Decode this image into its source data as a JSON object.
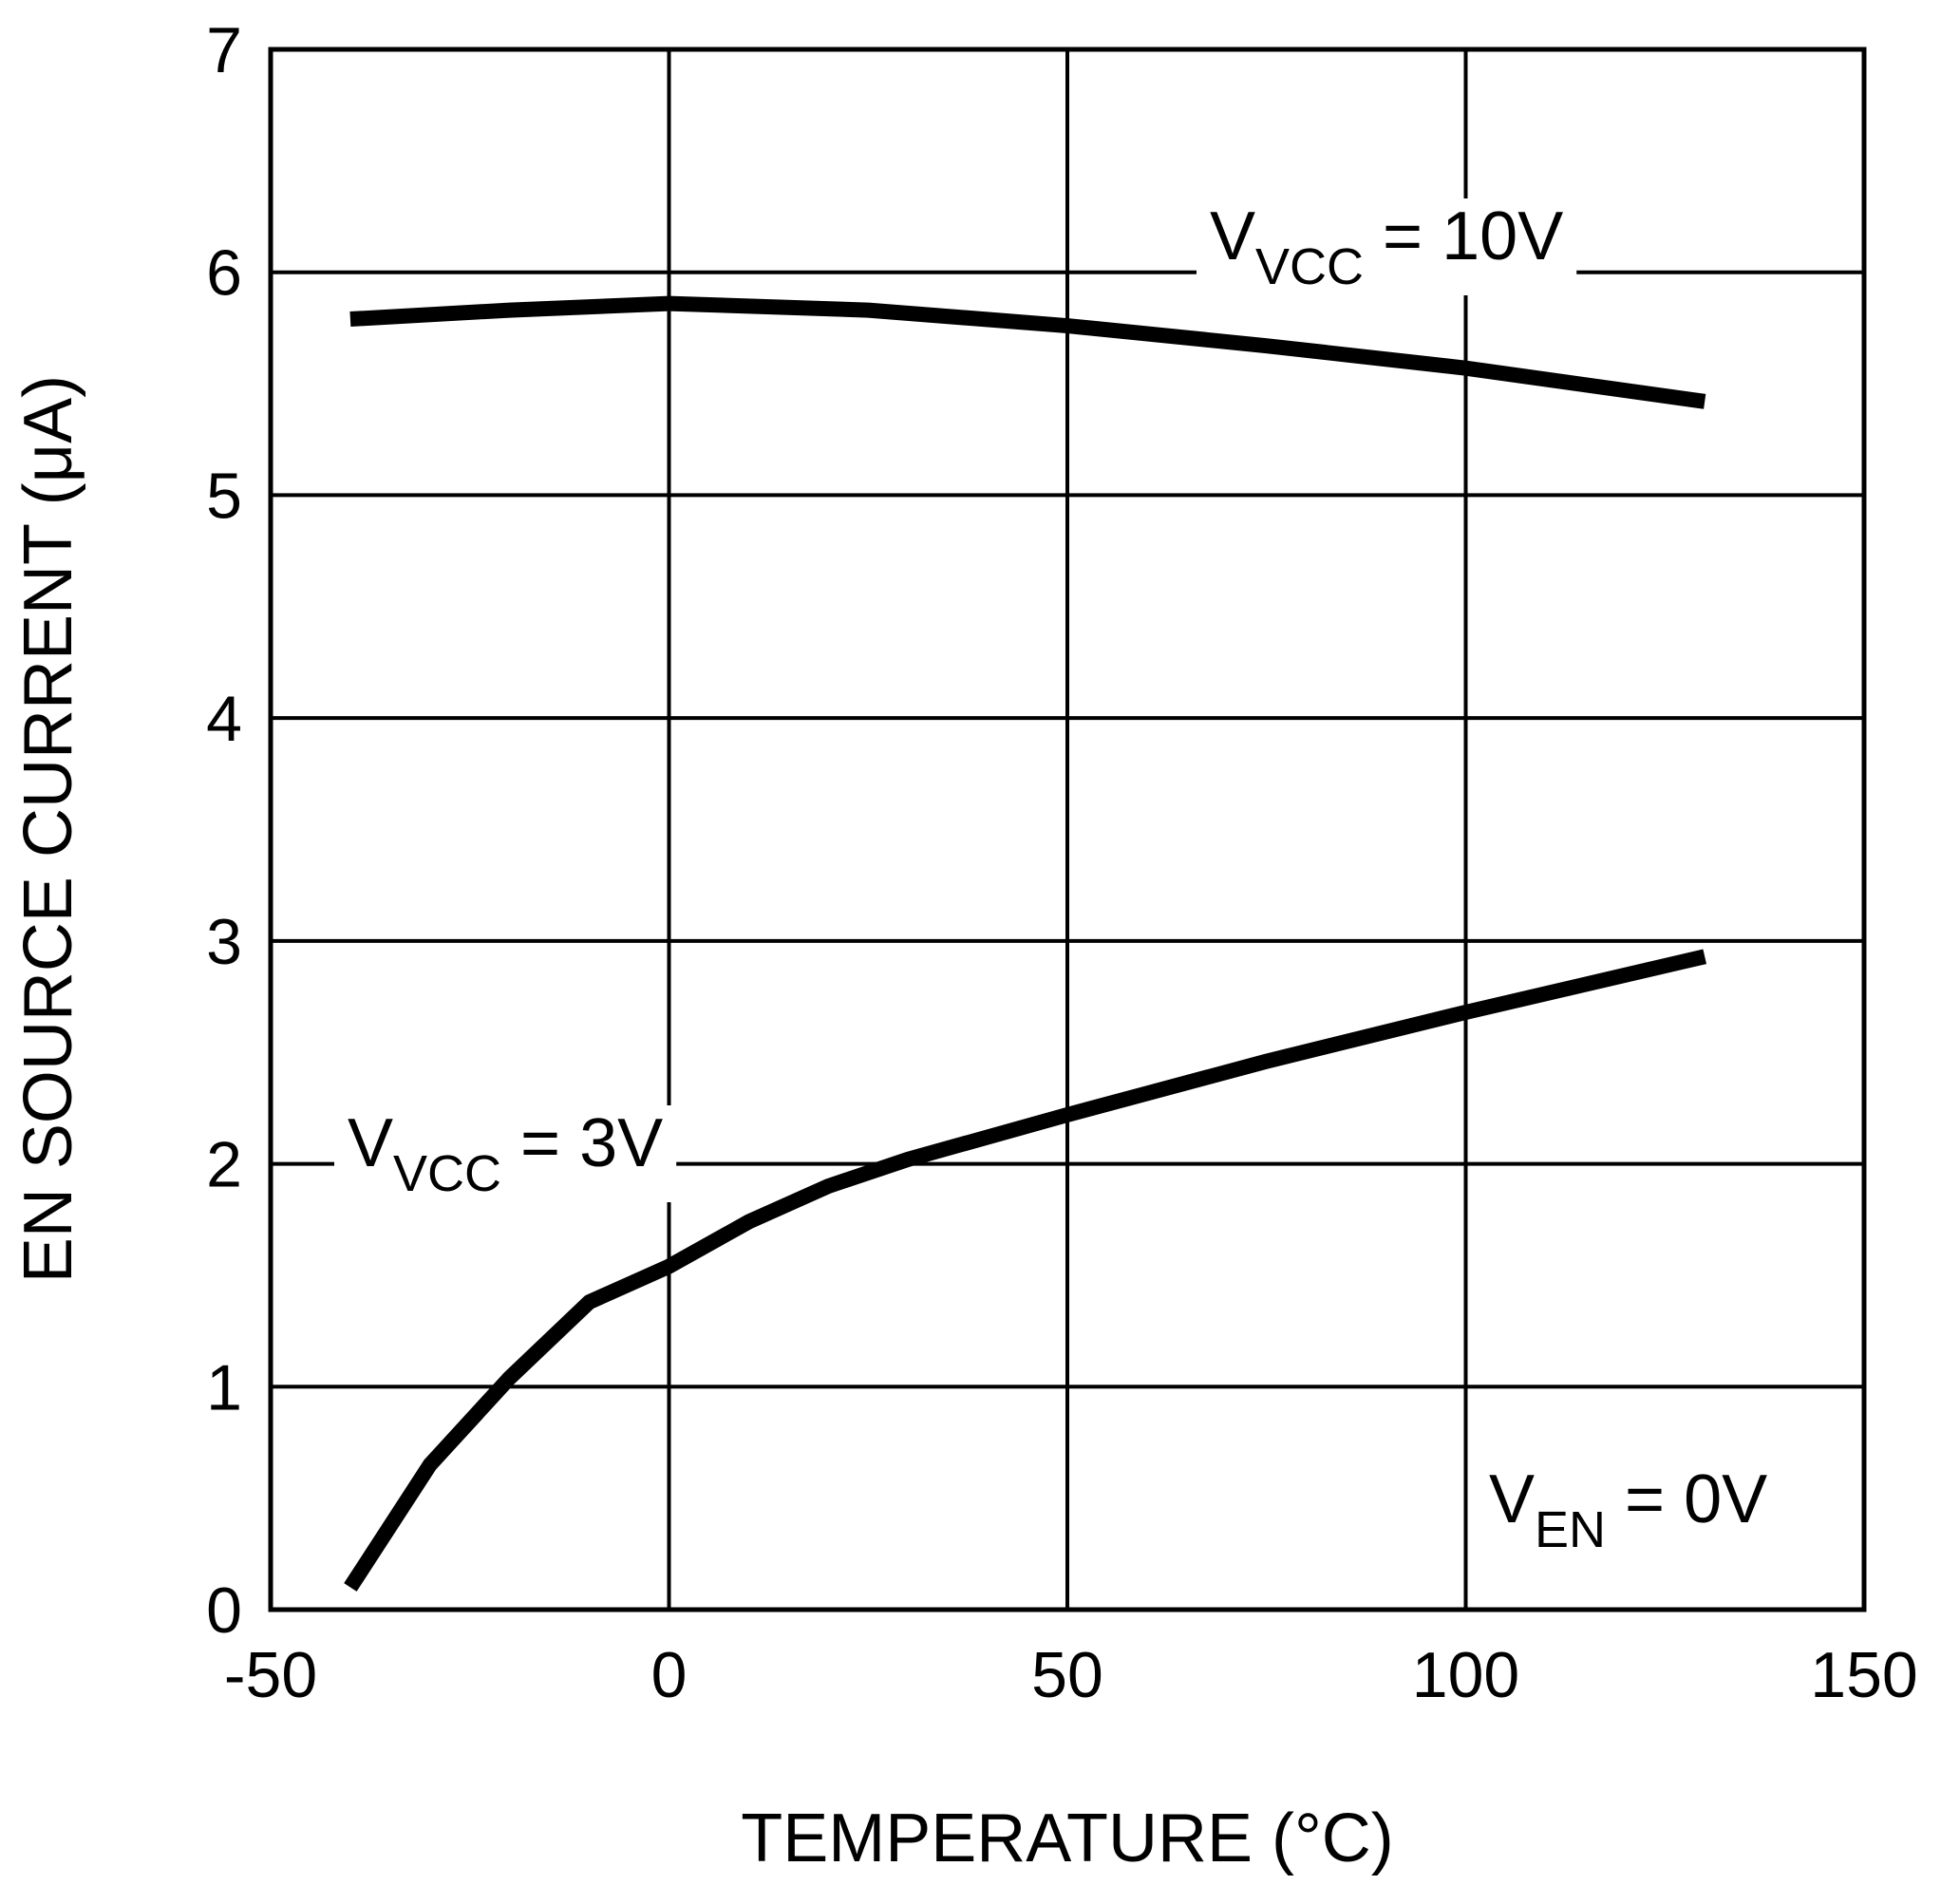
{
  "chart_data": {
    "type": "line",
    "x_label": "TEMPERATURE (°C)",
    "y_label": "EN SOURCE CURRENT (μA)",
    "xlim": [
      -50,
      150
    ],
    "xticks": [
      -50,
      0,
      50,
      100,
      150
    ],
    "ylim": [
      0,
      7
    ],
    "yticks": [
      0,
      1,
      2,
      3,
      4,
      5,
      6,
      7
    ],
    "grid": true,
    "series": [
      {
        "name_parts": [
          "V",
          "VCC",
          " = 10V"
        ],
        "color": "#000000",
        "x": [
          -40,
          -20,
          0,
          25,
          50,
          75,
          100,
          130
        ],
        "values": [
          5.79,
          5.83,
          5.86,
          5.83,
          5.76,
          5.67,
          5.57,
          5.42
        ]
      },
      {
        "name_parts": [
          "V",
          "VCC",
          " = 3V"
        ],
        "color": "#000000",
        "x": [
          -40,
          -30,
          -20,
          -10,
          0,
          10,
          20,
          30,
          50,
          75,
          100,
          130
        ],
        "values": [
          0.1,
          0.65,
          1.04,
          1.38,
          1.54,
          1.74,
          1.9,
          2.02,
          2.22,
          2.46,
          2.68,
          2.93
        ]
      }
    ],
    "annotations": [
      {
        "text_parts": [
          "V",
          "EN",
          " = 0V"
        ]
      }
    ]
  }
}
